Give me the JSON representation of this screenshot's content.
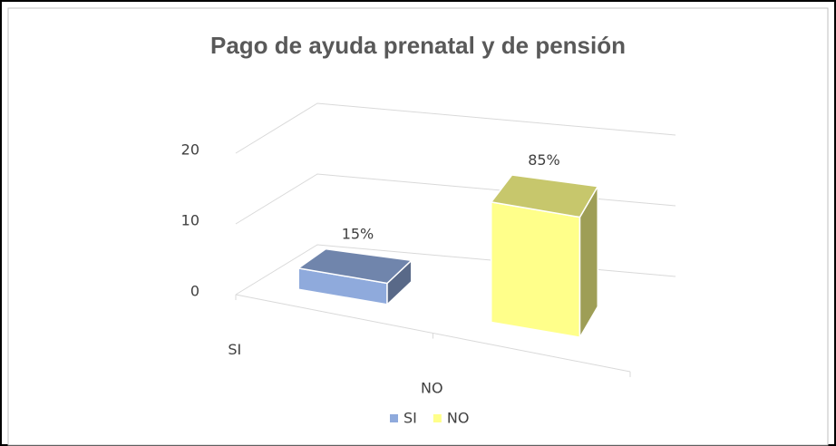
{
  "chart_data": {
    "type": "bar3d",
    "title": "Pago de ayuda prenatal y de pensión",
    "categories": [
      "SI",
      "NO"
    ],
    "series": [
      {
        "name": "SI",
        "color": "#8faadc",
        "values": [
          3,
          null
        ]
      },
      {
        "name": "NO",
        "color": "#ffff8a",
        "values": [
          null,
          17
        ]
      }
    ],
    "value_labels": [
      "15%",
      "85%"
    ],
    "ylim": [
      0,
      20
    ],
    "yticks": [
      0,
      10,
      20
    ],
    "grid": true,
    "legend": "bottom"
  }
}
